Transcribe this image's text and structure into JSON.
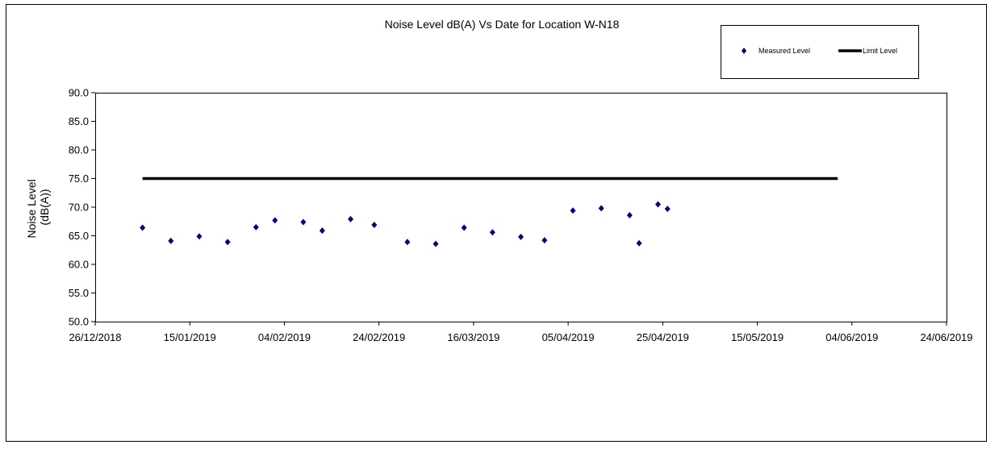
{
  "chart_data": {
    "type": "scatter",
    "title": "Noise Level dB(A) Vs Date for Location W-N18",
    "ylabel_lines": [
      "Noise Level",
      "(dB(A))"
    ],
    "xlabel": "",
    "xlim": [
      "2018-12-26",
      "2019-06-24"
    ],
    "ylim": [
      50.0,
      90.0
    ],
    "y_ticks": [
      "50.0",
      "55.0",
      "60.0",
      "65.0",
      "70.0",
      "75.0",
      "80.0",
      "85.0",
      "90.0"
    ],
    "x_ticks": [
      {
        "date": "2018-12-26",
        "label": "26/12/2018"
      },
      {
        "date": "2019-01-15",
        "label": "15/01/2019"
      },
      {
        "date": "2019-02-04",
        "label": "04/02/2019"
      },
      {
        "date": "2019-02-24",
        "label": "24/02/2019"
      },
      {
        "date": "2019-03-16",
        "label": "16/03/2019"
      },
      {
        "date": "2019-04-05",
        "label": "05/04/2019"
      },
      {
        "date": "2019-04-25",
        "label": "25/04/2019"
      },
      {
        "date": "2019-05-15",
        "label": "15/05/2019"
      },
      {
        "date": "2019-06-04",
        "label": "04/06/2019"
      },
      {
        "date": "2019-06-24",
        "label": "24/06/2019"
      }
    ],
    "grid": false,
    "legend_position": "top-right",
    "series": [
      {
        "name": "Measured Level",
        "kind": "scatter",
        "marker": "diamond",
        "color": "#000080",
        "points": [
          {
            "x": "2019-01-05",
            "y": 66.4
          },
          {
            "x": "2019-01-11",
            "y": 64.1
          },
          {
            "x": "2019-01-17",
            "y": 64.9
          },
          {
            "x": "2019-01-23",
            "y": 63.9
          },
          {
            "x": "2019-01-29",
            "y": 66.5
          },
          {
            "x": "2019-02-02",
            "y": 67.7
          },
          {
            "x": "2019-02-08",
            "y": 67.4
          },
          {
            "x": "2019-02-12",
            "y": 65.9
          },
          {
            "x": "2019-02-18",
            "y": 67.9
          },
          {
            "x": "2019-02-23",
            "y": 66.9
          },
          {
            "x": "2019-03-02",
            "y": 63.9
          },
          {
            "x": "2019-03-08",
            "y": 63.6
          },
          {
            "x": "2019-03-14",
            "y": 66.4
          },
          {
            "x": "2019-03-20",
            "y": 65.6
          },
          {
            "x": "2019-03-26",
            "y": 64.8
          },
          {
            "x": "2019-03-31",
            "y": 64.2
          },
          {
            "x": "2019-04-06",
            "y": 69.4
          },
          {
            "x": "2019-04-12",
            "y": 69.8
          },
          {
            "x": "2019-04-18",
            "y": 68.6
          },
          {
            "x": "2019-04-20",
            "y": 63.7
          },
          {
            "x": "2019-04-24",
            "y": 70.5
          },
          {
            "x": "2019-04-26",
            "y": 69.7
          }
        ]
      },
      {
        "name": "Limit Level",
        "kind": "line",
        "color": "#000000",
        "points": [
          {
            "x": "2019-01-05",
            "y": 75.0
          },
          {
            "x": "2019-06-01",
            "y": 75.0
          }
        ]
      }
    ]
  }
}
